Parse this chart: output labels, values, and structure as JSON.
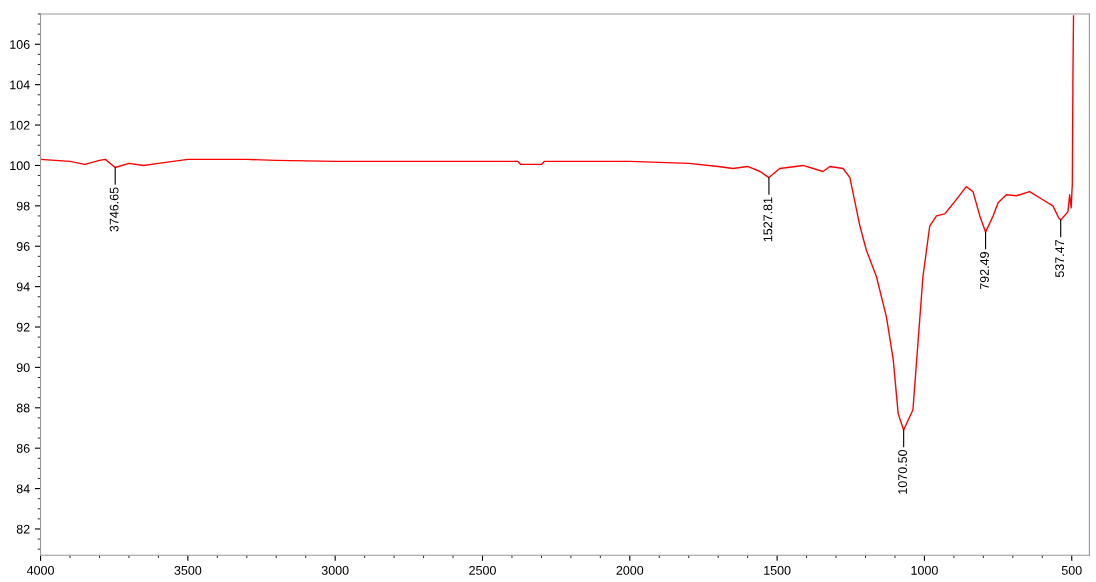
{
  "chart_data": {
    "type": "line",
    "x": [
      4000,
      3900,
      3850,
      3800,
      3780,
      3746.65,
      3700,
      3650,
      3600,
      3500,
      3300,
      3200,
      3000,
      2500,
      2380,
      2370,
      2300,
      2290,
      2000,
      1900,
      1800,
      1700,
      1650,
      1600,
      1558,
      1527.81,
      1491,
      1412,
      1344,
      1321,
      1276,
      1253,
      1219,
      1197,
      1163,
      1129,
      1106,
      1089,
      1070.5,
      1039,
      1022,
      1005,
      982,
      959,
      931,
      903,
      858,
      835,
      812,
      792.49,
      767,
      750,
      722,
      688,
      643,
      598,
      564,
      544,
      537.47,
      513,
      507,
      502,
      498,
      496,
      494
    ],
    "series": [
      {
        "color": "#ff0000",
        "values": [
          100.3,
          100.2,
          100.05,
          100.25,
          100.3,
          99.9,
          100.1,
          100.0,
          100.1,
          100.3,
          100.3,
          100.25,
          100.2,
          100.2,
          100.2,
          100.05,
          100.05,
          100.2,
          100.2,
          100.15,
          100.1,
          99.95,
          99.85,
          99.95,
          99.7,
          99.4,
          99.85,
          100.0,
          99.7,
          99.95,
          99.85,
          99.4,
          97.0,
          95.8,
          94.5,
          92.5,
          90.4,
          87.7,
          86.9,
          87.9,
          91.2,
          94.5,
          97.0,
          97.5,
          97.6,
          98.1,
          98.95,
          98.7,
          97.5,
          96.7,
          97.5,
          98.15,
          98.55,
          98.5,
          98.7,
          98.3,
          98.0,
          97.4,
          97.3,
          97.7,
          98.55,
          97.9,
          99.1,
          104.4,
          107.4
        ]
      }
    ],
    "xlim": [
      4000,
      440
    ],
    "ylim": [
      80.7,
      107.5
    ],
    "xticks": [
      4000,
      3500,
      3000,
      2500,
      2000,
      1500,
      1000,
      500
    ],
    "yticks": [
      82,
      84,
      86,
      88,
      90,
      92,
      94,
      96,
      98,
      100,
      102,
      104,
      106
    ],
    "grid": false,
    "legend": false,
    "marker": "none",
    "line_style": "solid",
    "annotations": [
      {
        "text": "3746.65",
        "x": 3746.65,
        "y": 99.9
      },
      {
        "text": "1527.81",
        "x": 1527.81,
        "y": 99.4
      },
      {
        "text": "1070.50",
        "x": 1070.5,
        "y": 86.9
      },
      {
        "text": "792.49",
        "x": 792.49,
        "y": 96.7
      },
      {
        "text": "537.47",
        "x": 537.47,
        "y": 97.3
      }
    ]
  }
}
